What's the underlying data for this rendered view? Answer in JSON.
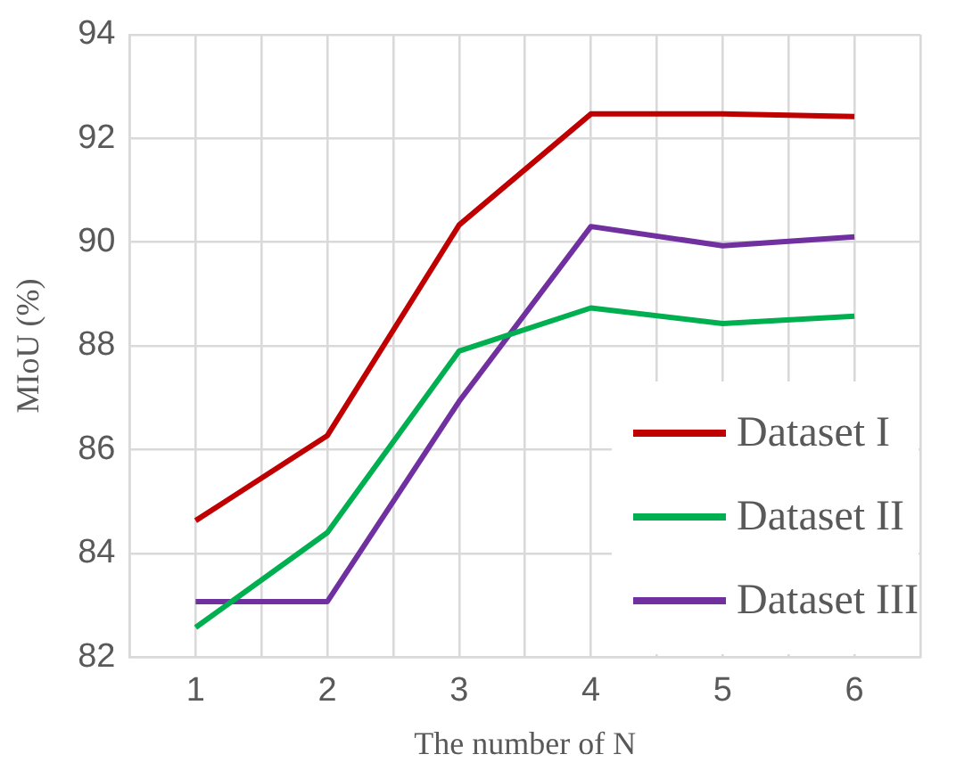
{
  "chart_data": {
    "type": "line",
    "xlabel": "The number of N",
    "ylabel": "MIoU (%)",
    "x": [
      1,
      2,
      3,
      4,
      5,
      6
    ],
    "xlim": [
      0.5,
      6.5
    ],
    "xticks": [
      {
        "value": 0.5,
        "label": null
      },
      1,
      {
        "value": 1.5,
        "label": null
      },
      2,
      {
        "value": 2.5,
        "label": null
      },
      3,
      {
        "value": 3.5,
        "label": null
      },
      4,
      {
        "value": 4.5,
        "label": null
      },
      5,
      {
        "value": 5.5,
        "label": null
      },
      6,
      {
        "value": 6.5,
        "label": null
      }
    ],
    "ylim": [
      82,
      94
    ],
    "yticks": [
      82,
      84,
      86,
      88,
      90,
      92,
      94
    ],
    "grid": true,
    "legend": "bottom right",
    "marker": "none",
    "line_style": "solid",
    "series": [
      {
        "name": "Dataset I",
        "color": "#c00000",
        "values": [
          84.63,
          86.27,
          90.33,
          92.47,
          92.47,
          92.42
        ]
      },
      {
        "name": "Dataset II",
        "color": "#00b050",
        "values": [
          82.57,
          84.4,
          87.9,
          88.73,
          88.43,
          88.57
        ]
      },
      {
        "name": "Dataset III",
        "color": "#7030a0",
        "values": [
          83.07,
          83.07,
          86.93,
          90.3,
          89.93,
          90.1
        ]
      }
    ]
  }
}
